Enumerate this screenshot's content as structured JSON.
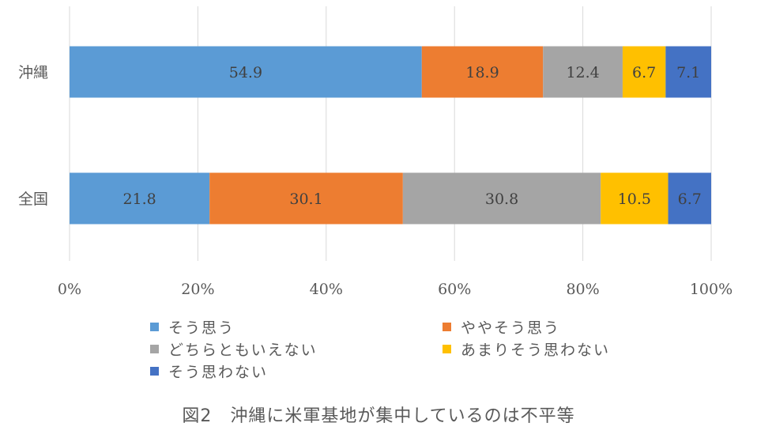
{
  "chart_data": {
    "type": "bar",
    "orientation": "horizontal",
    "stacked": "percent",
    "categories": [
      "沖縄",
      "全国"
    ],
    "series": [
      {
        "name": "そう思う",
        "values": [
          54.9,
          21.8
        ],
        "color": "#5B9BD5"
      },
      {
        "name": "ややそう思う",
        "values": [
          18.9,
          30.1
        ],
        "color": "#ED7D31"
      },
      {
        "name": "どちらともいえない",
        "values": [
          12.4,
          30.8
        ],
        "color": "#A5A5A5"
      },
      {
        "name": "あまりそう思わない",
        "values": [
          6.7,
          10.5
        ],
        "color": "#FFC000"
      },
      {
        "name": "そう思わない",
        "values": [
          7.1,
          6.7
        ],
        "color": "#4472C4"
      }
    ],
    "x_ticks": [
      "0%",
      "20%",
      "40%",
      "60%",
      "80%",
      "100%"
    ],
    "xlim": [
      0,
      100
    ],
    "grid": "vertical",
    "legend_position": "bottom",
    "caption": "図2　沖縄に米軍基地が集中しているのは不平等"
  }
}
